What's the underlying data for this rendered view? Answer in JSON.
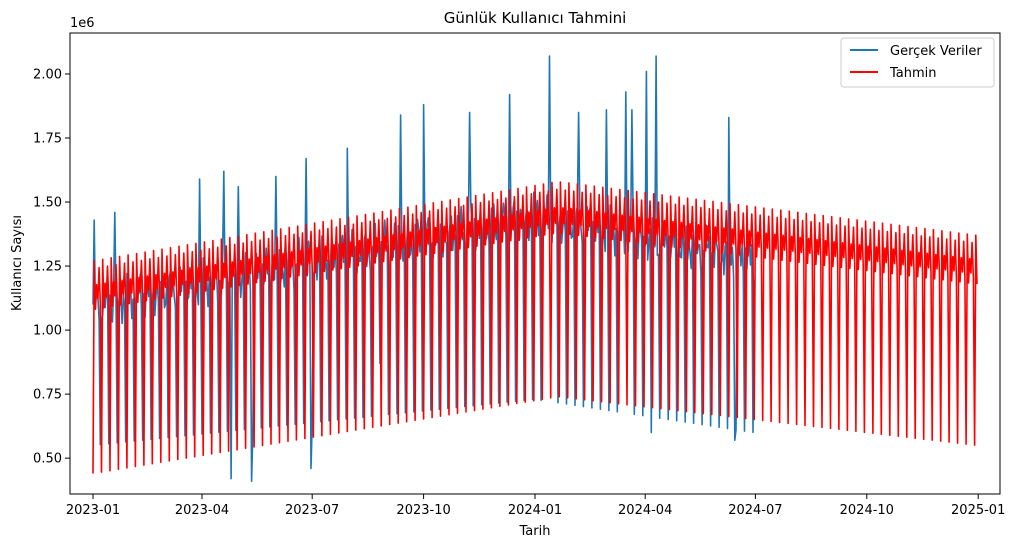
{
  "chart_data": {
    "type": "line",
    "title": "Günlük Kullanıcı Tahmini",
    "xlabel": "Tarih",
    "ylabel": "Kullanıcı Sayısı",
    "y_offset_label": "1e6",
    "x_axis_kind": "date",
    "xlim": [
      "2022-12-13",
      "2025-01-19"
    ],
    "ylim": [
      0.36,
      2.16
    ],
    "y_unit_multiplier": 1000000,
    "x_ticks": [
      "2023-01-01",
      "2023-04-01",
      "2023-07-01",
      "2023-10-01",
      "2024-01-01",
      "2024-04-01",
      "2024-07-01",
      "2024-10-01",
      "2025-01-01"
    ],
    "x_tick_labels": [
      "2023-01",
      "2023-04",
      "2023-07",
      "2023-10",
      "2024-01",
      "2024-04",
      "2024-07",
      "2024-10",
      "2025-01"
    ],
    "y_ticks": [
      0.5,
      0.75,
      1.0,
      1.25,
      1.5,
      1.75,
      2.0
    ],
    "y_tick_labels": [
      "0.50",
      "0.75",
      "1.00",
      "1.25",
      "1.50",
      "1.75",
      "2.00"
    ],
    "grid": false,
    "legend_position": "top-right",
    "series": [
      {
        "name": "Gerçek Veriler",
        "color": "#1f77b4",
        "x_start": "2023-01-01",
        "x_end": "2024-06-30",
        "period_days": 7,
        "low_day_value_start": 0.55,
        "low_day_value_peak": 0.73,
        "low_day_value_end": 0.6,
        "weekday_value_start": 1.1,
        "weekday_value_peak": 1.45,
        "weekday_value_end": 1.28,
        "peak_date": "2024-01-01",
        "spikes": [
          {
            "x": "2023-01-02",
            "y": 1.43
          },
          {
            "x": "2023-01-19",
            "y": 1.46
          },
          {
            "x": "2023-03-30",
            "y": 1.59
          },
          {
            "x": "2023-04-19",
            "y": 1.62
          },
          {
            "x": "2023-04-25",
            "y": 0.42
          },
          {
            "x": "2023-05-01",
            "y": 1.56
          },
          {
            "x": "2023-05-12",
            "y": 0.41
          },
          {
            "x": "2023-06-01",
            "y": 1.6
          },
          {
            "x": "2023-06-26",
            "y": 1.67
          },
          {
            "x": "2023-06-30",
            "y": 0.46
          },
          {
            "x": "2023-07-30",
            "y": 1.71
          },
          {
            "x": "2023-08-26",
            "y": 0.87
          },
          {
            "x": "2023-09-12",
            "y": 1.84
          },
          {
            "x": "2023-10-01",
            "y": 1.88
          },
          {
            "x": "2023-11-08",
            "y": 1.85
          },
          {
            "x": "2023-12-11",
            "y": 1.92
          },
          {
            "x": "2024-01-13",
            "y": 2.07
          },
          {
            "x": "2024-02-06",
            "y": 1.85
          },
          {
            "x": "2024-02-29",
            "y": 1.86
          },
          {
            "x": "2024-03-16",
            "y": 1.93
          },
          {
            "x": "2024-03-21",
            "y": 1.86
          },
          {
            "x": "2024-04-02",
            "y": 2.01
          },
          {
            "x": "2024-04-06",
            "y": 0.6
          },
          {
            "x": "2024-04-10",
            "y": 2.07
          },
          {
            "x": "2024-06-09",
            "y": 1.83
          },
          {
            "x": "2024-06-14",
            "y": 0.57
          }
        ]
      },
      {
        "name": "Tahmin",
        "color": "#ff0000",
        "x_start": "2023-01-01",
        "x_end": "2024-12-31",
        "period_days": 7,
        "low_day_value_start": 0.44,
        "low_day_value_peak": 0.74,
        "low_day_value_end": 0.55,
        "high_day_value_start": 1.27,
        "high_day_value_peak": 1.58,
        "high_day_value_end": 1.37,
        "mid_day_value_start": 1.08,
        "mid_day_value_peak": 1.38,
        "mid_day_value_end": 1.18,
        "peak_date": "2024-01-20"
      }
    ]
  }
}
